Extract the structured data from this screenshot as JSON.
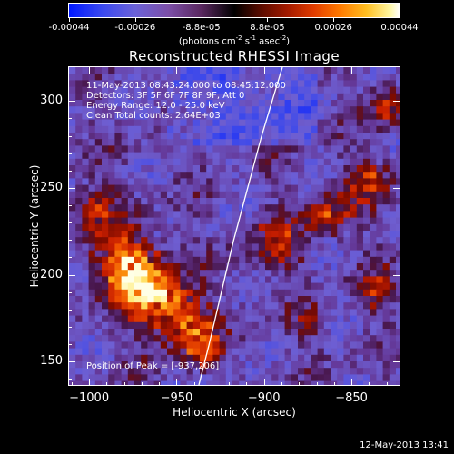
{
  "colorbar": {
    "ticks": [
      "-0.00044",
      "-0.00026",
      "-8.8e-05",
      "8.8e-05",
      "0.00026",
      "0.00044"
    ],
    "unit_prefix": "(photons cm",
    "unit_exp1": "-2",
    "unit_mid": " s",
    "unit_exp2": "-1",
    "unit_suffix": " asec",
    "unit_exp3": "-2",
    "unit_close": ")"
  },
  "title": "Reconstructed RHESSI Image",
  "info": {
    "time_range": "11-May-2013 08:43:24.000 to 08:45:12.000",
    "detectors": "Detectors: 3F 5F 6F 7F 8F 9F, Att 0",
    "energy": "Energy Range: 12.0 - 25.0 keV",
    "method_counts": "Clean     Total counts: 2.64E+03",
    "peak": "Position of Peak = [-937,206]"
  },
  "chart_data": {
    "type": "heatmap",
    "xlabel": "Heliocentric X (arcsec)",
    "ylabel": "Heliocentric Y (arcsec)",
    "xlim": [
      -1012,
      -822
    ],
    "ylim": [
      136,
      320
    ],
    "x_ticks": [
      "−1000",
      "−950",
      "−900",
      "−850"
    ],
    "x_tick_values": [
      -1000,
      -950,
      -900,
      -850
    ],
    "y_ticks": [
      "300",
      "250",
      "200",
      "150"
    ],
    "y_tick_values": [
      300,
      250,
      200,
      150
    ],
    "limb_line": [
      [
        -938,
        136
      ],
      [
        -932,
        160
      ],
      [
        -925,
        190
      ],
      [
        -918,
        220
      ],
      [
        -910,
        250
      ],
      [
        -902,
        280
      ],
      [
        -893,
        310
      ],
      [
        -890,
        320
      ]
    ],
    "peak_position": [
      -937,
      206
    ]
  },
  "footer": "12-May-2013 13:41"
}
